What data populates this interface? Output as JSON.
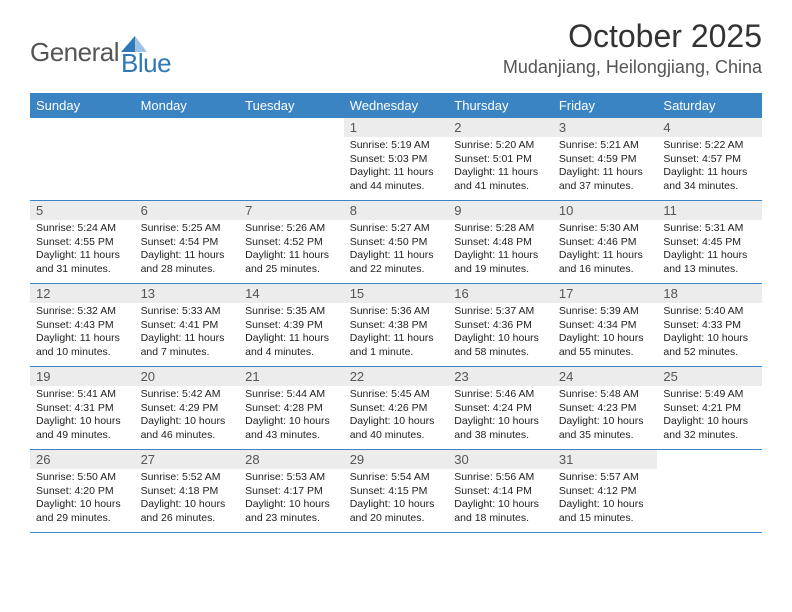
{
  "logo": {
    "text1": "General",
    "text2": "Blue"
  },
  "title": "October 2025",
  "location": "Mudanjiang, Heilongjiang, China",
  "colors": {
    "header_bg": "#3b84c4",
    "header_text": "#ffffff",
    "daynum_bg": "#ececec",
    "border": "#3b84c4",
    "logo_gray": "#555555",
    "logo_blue": "#2f79b9"
  },
  "dayNames": [
    "Sunday",
    "Monday",
    "Tuesday",
    "Wednesday",
    "Thursday",
    "Friday",
    "Saturday"
  ],
  "weeks": [
    [
      null,
      null,
      null,
      {
        "n": "1",
        "sr": "5:19 AM",
        "ss": "5:03 PM",
        "dl": "11 hours and 44 minutes."
      },
      {
        "n": "2",
        "sr": "5:20 AM",
        "ss": "5:01 PM",
        "dl": "11 hours and 41 minutes."
      },
      {
        "n": "3",
        "sr": "5:21 AM",
        "ss": "4:59 PM",
        "dl": "11 hours and 37 minutes."
      },
      {
        "n": "4",
        "sr": "5:22 AM",
        "ss": "4:57 PM",
        "dl": "11 hours and 34 minutes."
      }
    ],
    [
      {
        "n": "5",
        "sr": "5:24 AM",
        "ss": "4:55 PM",
        "dl": "11 hours and 31 minutes."
      },
      {
        "n": "6",
        "sr": "5:25 AM",
        "ss": "4:54 PM",
        "dl": "11 hours and 28 minutes."
      },
      {
        "n": "7",
        "sr": "5:26 AM",
        "ss": "4:52 PM",
        "dl": "11 hours and 25 minutes."
      },
      {
        "n": "8",
        "sr": "5:27 AM",
        "ss": "4:50 PM",
        "dl": "11 hours and 22 minutes."
      },
      {
        "n": "9",
        "sr": "5:28 AM",
        "ss": "4:48 PM",
        "dl": "11 hours and 19 minutes."
      },
      {
        "n": "10",
        "sr": "5:30 AM",
        "ss": "4:46 PM",
        "dl": "11 hours and 16 minutes."
      },
      {
        "n": "11",
        "sr": "5:31 AM",
        "ss": "4:45 PM",
        "dl": "11 hours and 13 minutes."
      }
    ],
    [
      {
        "n": "12",
        "sr": "5:32 AM",
        "ss": "4:43 PM",
        "dl": "11 hours and 10 minutes."
      },
      {
        "n": "13",
        "sr": "5:33 AM",
        "ss": "4:41 PM",
        "dl": "11 hours and 7 minutes."
      },
      {
        "n": "14",
        "sr": "5:35 AM",
        "ss": "4:39 PM",
        "dl": "11 hours and 4 minutes."
      },
      {
        "n": "15",
        "sr": "5:36 AM",
        "ss": "4:38 PM",
        "dl": "11 hours and 1 minute."
      },
      {
        "n": "16",
        "sr": "5:37 AM",
        "ss": "4:36 PM",
        "dl": "10 hours and 58 minutes."
      },
      {
        "n": "17",
        "sr": "5:39 AM",
        "ss": "4:34 PM",
        "dl": "10 hours and 55 minutes."
      },
      {
        "n": "18",
        "sr": "5:40 AM",
        "ss": "4:33 PM",
        "dl": "10 hours and 52 minutes."
      }
    ],
    [
      {
        "n": "19",
        "sr": "5:41 AM",
        "ss": "4:31 PM",
        "dl": "10 hours and 49 minutes."
      },
      {
        "n": "20",
        "sr": "5:42 AM",
        "ss": "4:29 PM",
        "dl": "10 hours and 46 minutes."
      },
      {
        "n": "21",
        "sr": "5:44 AM",
        "ss": "4:28 PM",
        "dl": "10 hours and 43 minutes."
      },
      {
        "n": "22",
        "sr": "5:45 AM",
        "ss": "4:26 PM",
        "dl": "10 hours and 40 minutes."
      },
      {
        "n": "23",
        "sr": "5:46 AM",
        "ss": "4:24 PM",
        "dl": "10 hours and 38 minutes."
      },
      {
        "n": "24",
        "sr": "5:48 AM",
        "ss": "4:23 PM",
        "dl": "10 hours and 35 minutes."
      },
      {
        "n": "25",
        "sr": "5:49 AM",
        "ss": "4:21 PM",
        "dl": "10 hours and 32 minutes."
      }
    ],
    [
      {
        "n": "26",
        "sr": "5:50 AM",
        "ss": "4:20 PM",
        "dl": "10 hours and 29 minutes."
      },
      {
        "n": "27",
        "sr": "5:52 AM",
        "ss": "4:18 PM",
        "dl": "10 hours and 26 minutes."
      },
      {
        "n": "28",
        "sr": "5:53 AM",
        "ss": "4:17 PM",
        "dl": "10 hours and 23 minutes."
      },
      {
        "n": "29",
        "sr": "5:54 AM",
        "ss": "4:15 PM",
        "dl": "10 hours and 20 minutes."
      },
      {
        "n": "30",
        "sr": "5:56 AM",
        "ss": "4:14 PM",
        "dl": "10 hours and 18 minutes."
      },
      {
        "n": "31",
        "sr": "5:57 AM",
        "ss": "4:12 PM",
        "dl": "10 hours and 15 minutes."
      },
      null
    ]
  ],
  "labels": {
    "sunrise": "Sunrise: ",
    "sunset": "Sunset: ",
    "daylight": "Daylight: "
  }
}
